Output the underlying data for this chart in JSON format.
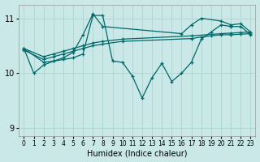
{
  "xlabel": "Humidex (Indice chaleur)",
  "bg_color": "#cbe8e8",
  "line_color": "#006868",
  "grid_color": "#b0d8d0",
  "xlim": [
    -0.5,
    23.5
  ],
  "ylim": [
    8.85,
    11.25
  ],
  "yticks": [
    9,
    10,
    11
  ],
  "xticks": [
    0,
    1,
    2,
    3,
    4,
    5,
    6,
    7,
    8,
    9,
    10,
    11,
    12,
    13,
    14,
    15,
    16,
    17,
    18,
    19,
    20,
    21,
    22,
    23
  ],
  "series": [
    {
      "x": [
        0,
        2,
        3,
        4,
        5,
        6,
        7,
        8,
        10,
        17,
        20,
        21,
        22,
        23
      ],
      "y": [
        10.45,
        10.3,
        10.35,
        10.4,
        10.45,
        10.5,
        10.55,
        10.58,
        10.62,
        10.68,
        10.72,
        10.73,
        10.74,
        10.75
      ]
    },
    {
      "x": [
        0,
        2,
        3,
        4,
        5,
        6,
        7,
        8,
        10,
        17,
        18,
        19,
        20,
        21,
        22,
        23
      ],
      "y": [
        10.42,
        10.25,
        10.3,
        10.35,
        10.4,
        10.45,
        10.5,
        10.53,
        10.58,
        10.63,
        10.66,
        10.68,
        10.7,
        10.7,
        10.71,
        10.72
      ]
    },
    {
      "x": [
        0,
        2,
        3,
        4,
        5,
        6,
        7,
        8,
        16,
        17,
        18,
        20,
        21,
        22,
        23
      ],
      "y": [
        10.45,
        10.2,
        10.22,
        10.28,
        10.38,
        10.7,
        11.08,
        10.85,
        10.72,
        10.88,
        11.0,
        10.95,
        10.88,
        10.9,
        10.75
      ]
    },
    {
      "x": [
        0,
        1,
        2,
        3,
        4,
        5,
        6,
        7,
        8,
        9,
        10,
        11,
        12,
        13,
        14,
        15,
        16,
        17,
        18,
        19,
        20,
        21,
        22,
        23
      ],
      "y": [
        10.45,
        10.0,
        10.15,
        10.22,
        10.25,
        10.28,
        10.35,
        11.05,
        11.05,
        10.22,
        10.2,
        9.95,
        9.55,
        9.92,
        10.18,
        9.85,
        10.0,
        10.2,
        10.62,
        10.75,
        10.88,
        10.85,
        10.85,
        10.7
      ]
    }
  ]
}
